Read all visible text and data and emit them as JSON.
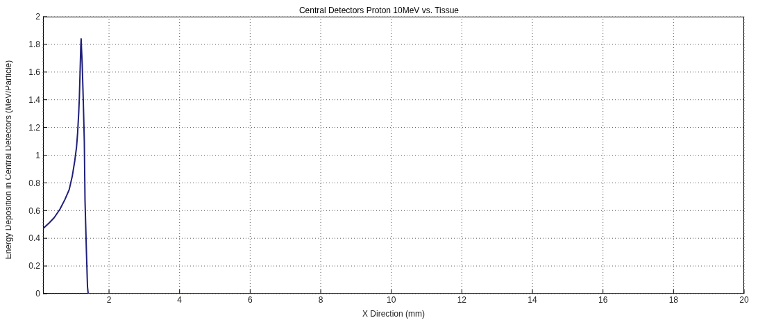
{
  "chart_data": {
    "type": "line",
    "title": "Central Detectors Proton 10MeV vs. Tissue",
    "xlabel": "X Direction (mm)",
    "ylabel": "Energy Deposition in Central Detectors (MeV/Particle)",
    "x": [
      0.13,
      0.3,
      0.45,
      0.61,
      0.75,
      0.87,
      0.96,
      1.03,
      1.08,
      1.11,
      1.14,
      1.16,
      1.18,
      1.2,
      1.21,
      1.22,
      1.24,
      1.27,
      1.3,
      1.32,
      1.36,
      1.39,
      1.41,
      2,
      4,
      6,
      8,
      10,
      12,
      14,
      16,
      18,
      20
    ],
    "series": [
      {
        "color": "#1f1f7a",
        "values": [
          0.47,
          0.51,
          0.55,
          0.61,
          0.68,
          0.75,
          0.85,
          0.96,
          1.06,
          1.16,
          1.3,
          1.42,
          1.6,
          1.79,
          1.84,
          1.77,
          1.66,
          1.4,
          1.1,
          0.67,
          0.3,
          0.05,
          0,
          0,
          0,
          0,
          0,
          0,
          0,
          0,
          0,
          0,
          0
        ]
      }
    ],
    "xlim": [
      0.13,
      20
    ],
    "xticks": [
      2,
      4,
      6,
      8,
      10,
      12,
      14,
      16,
      18,
      20
    ],
    "ylim": [
      0,
      2
    ],
    "yticks": [
      0,
      0.2,
      0.4,
      0.6,
      0.8,
      1,
      1.2,
      1.4,
      1.6,
      1.8,
      2
    ],
    "grid": true,
    "legend": false,
    "marker": "none",
    "line_style": "solid"
  }
}
